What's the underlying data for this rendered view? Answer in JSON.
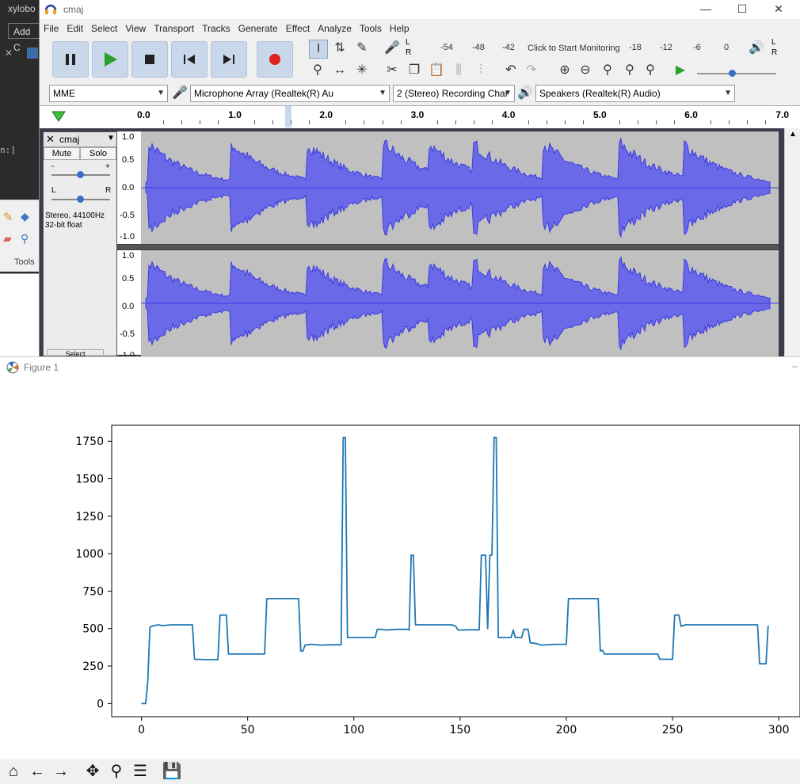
{
  "background_window": {
    "title_fragment": "xylobo",
    "add_button": "Add C",
    "console_fragment": "n:]",
    "tools_label": "Tools"
  },
  "audacity": {
    "title": "cmaj",
    "menu": [
      "File",
      "Edit",
      "Select",
      "View",
      "Transport",
      "Tracks",
      "Generate",
      "Effect",
      "Analyze",
      "Tools",
      "Help"
    ],
    "meter": {
      "lr_top": "L",
      "lr_bottom": "R",
      "ticks": [
        "-54",
        "-48",
        "-42",
        "Click to Start Monitoring",
        "-18",
        "-12",
        "-6",
        "0"
      ]
    },
    "device_bar": {
      "host": "MME",
      "input_device": "Microphone Array (Realtek(R) Au",
      "channels": "2 (Stereo) Recording Char",
      "output_device": "Speakers (Realtek(R) Audio)"
    },
    "ruler_labels": [
      "0.0",
      "1.0",
      "2.0",
      "3.0",
      "4.0",
      "5.0",
      "6.0",
      "7.0"
    ],
    "track": {
      "name": "cmaj",
      "mute": "Mute",
      "solo": "Solo",
      "gain_minus": "-",
      "gain_plus": "+",
      "pan_left": "L",
      "pan_right": "R",
      "info_rate": "Stereo, 44100Hz",
      "info_format": "32-bit float",
      "select_fragment": "Select"
    },
    "vertical_scale_top": [
      "1.0",
      "0.5",
      "0.0",
      "-0.5",
      "-1.0"
    ],
    "vertical_scale_bottom": [
      "1.0",
      "0.5",
      "0.0",
      "-0.5",
      "-1.0"
    ],
    "wave_color": "#3b3be0",
    "wave_fill": "#6a6ae8"
  },
  "figure": {
    "title": "Figure 1",
    "toolbar": [
      "home-icon",
      "back-icon",
      "forward-icon",
      "pan-icon",
      "zoom-icon",
      "configure-icon",
      "save-icon"
    ]
  },
  "chart_data": {
    "type": "line",
    "color": "#1f77b4",
    "xlim": [
      -14,
      310
    ],
    "ylim": [
      -88,
      1857
    ],
    "xticks": [
      0,
      50,
      100,
      150,
      200,
      250,
      300
    ],
    "yticks": [
      0,
      250,
      500,
      750,
      1000,
      1250,
      1500,
      1750
    ],
    "points": [
      [
        0,
        0
      ],
      [
        2,
        0
      ],
      [
        3,
        150
      ],
      [
        4,
        510
      ],
      [
        6,
        520
      ],
      [
        8,
        525
      ],
      [
        10,
        520
      ],
      [
        14,
        525
      ],
      [
        20,
        525
      ],
      [
        24,
        525
      ],
      [
        25,
        295
      ],
      [
        30,
        293
      ],
      [
        36,
        293
      ],
      [
        37,
        590
      ],
      [
        40,
        590
      ],
      [
        41,
        330
      ],
      [
        50,
        330
      ],
      [
        58,
        330
      ],
      [
        59,
        700
      ],
      [
        70,
        700
      ],
      [
        74,
        700
      ],
      [
        75,
        350
      ],
      [
        76,
        350
      ],
      [
        77,
        390
      ],
      [
        80,
        395
      ],
      [
        84,
        390
      ],
      [
        90,
        392
      ],
      [
        94,
        392
      ],
      [
        95,
        1775
      ],
      [
        96,
        1775
      ],
      [
        97,
        440
      ],
      [
        100,
        440
      ],
      [
        110,
        440
      ],
      [
        111,
        495
      ],
      [
        113,
        495
      ],
      [
        115,
        490
      ],
      [
        120,
        495
      ],
      [
        125,
        495
      ],
      [
        126,
        490
      ],
      [
        127,
        990
      ],
      [
        128,
        990
      ],
      [
        129,
        525
      ],
      [
        135,
        525
      ],
      [
        140,
        525
      ],
      [
        146,
        525
      ],
      [
        148,
        515
      ],
      [
        149,
        490
      ],
      [
        155,
        492
      ],
      [
        159,
        492
      ],
      [
        160,
        990
      ],
      [
        162,
        990
      ],
      [
        163,
        500
      ],
      [
        164,
        990
      ],
      [
        165,
        990
      ],
      [
        166,
        1775
      ],
      [
        167,
        1775
      ],
      [
        168,
        440
      ],
      [
        172,
        440
      ],
      [
        174,
        440
      ],
      [
        175,
        490
      ],
      [
        176,
        440
      ],
      [
        179,
        440
      ],
      [
        180,
        495
      ],
      [
        182,
        495
      ],
      [
        183,
        405
      ],
      [
        186,
        400
      ],
      [
        188,
        390
      ],
      [
        195,
        395
      ],
      [
        200,
        395
      ],
      [
        201,
        700
      ],
      [
        205,
        700
      ],
      [
        215,
        700
      ],
      [
        216,
        350
      ],
      [
        217,
        355
      ],
      [
        218,
        330
      ],
      [
        225,
        330
      ],
      [
        240,
        330
      ],
      [
        243,
        330
      ],
      [
        244,
        295
      ],
      [
        250,
        295
      ],
      [
        251,
        590
      ],
      [
        253,
        590
      ],
      [
        254,
        515
      ],
      [
        256,
        525
      ],
      [
        260,
        525
      ],
      [
        270,
        525
      ],
      [
        280,
        525
      ],
      [
        290,
        525
      ],
      [
        291,
        265
      ],
      [
        294,
        265
      ],
      [
        295,
        520
      ]
    ]
  }
}
